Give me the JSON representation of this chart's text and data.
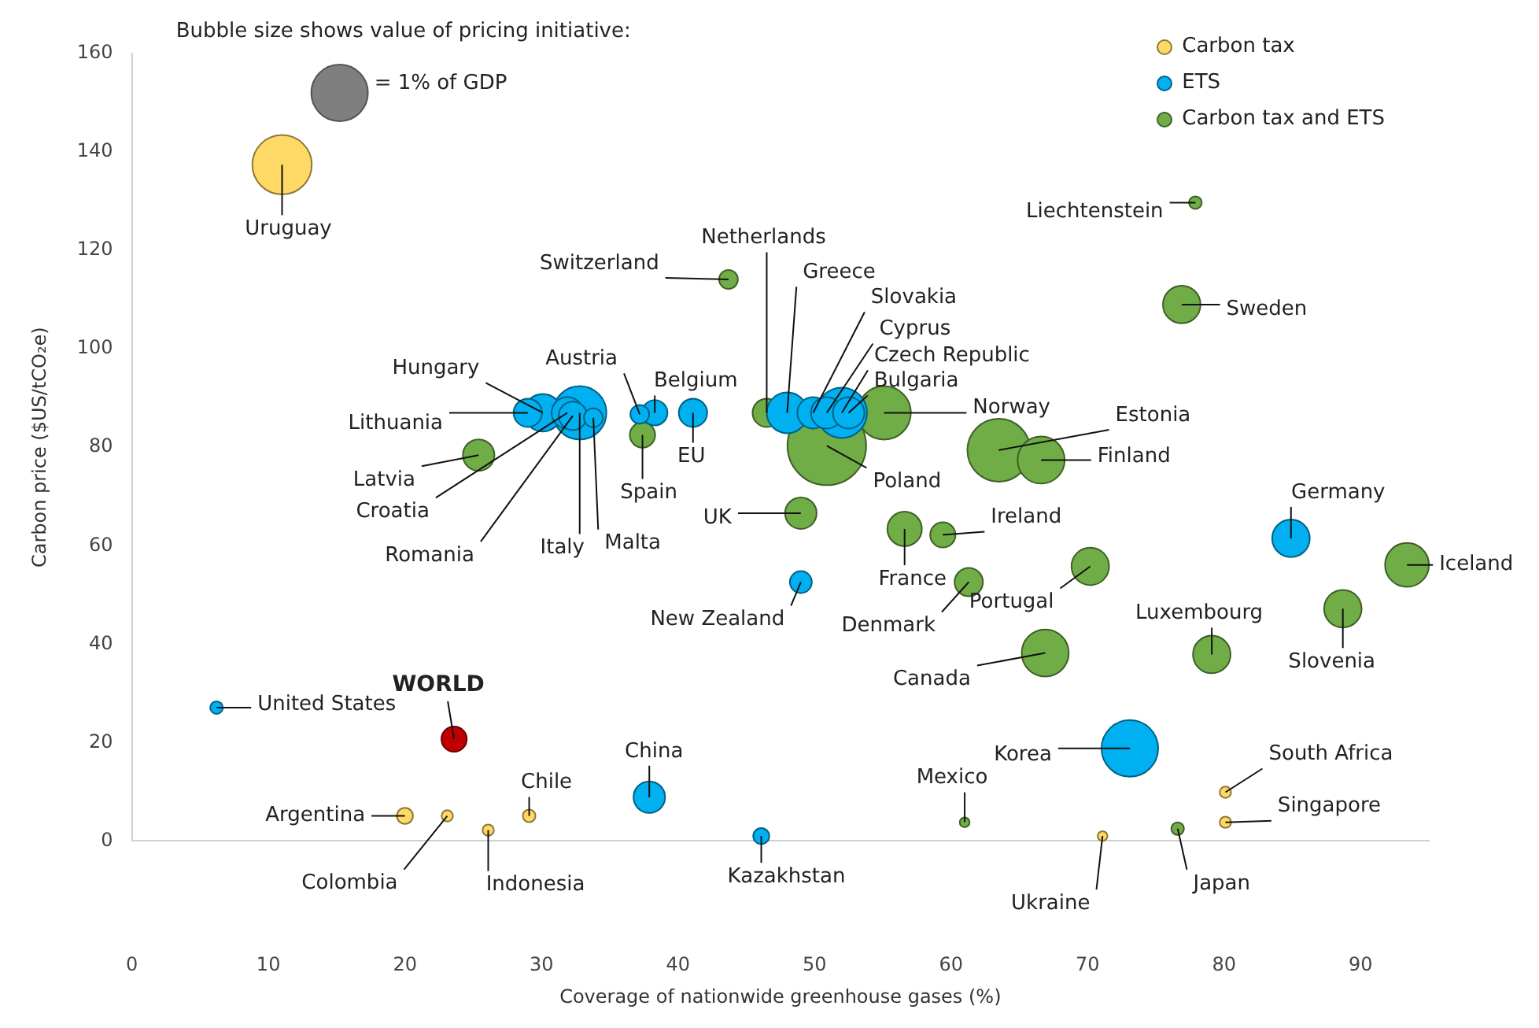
{
  "chart_data": {
    "type": "bubble",
    "xlabel": "Coverage of nationwide greenhouse gases (%)",
    "ylabel": "Carbon price ($US/tCO₂e)",
    "xlim": [
      0,
      95
    ],
    "xticks": [
      0,
      10,
      20,
      30,
      40,
      50,
      60,
      70,
      80,
      90
    ],
    "ylim": [
      0,
      160
    ],
    "yticks": [
      0,
      20,
      40,
      60,
      80,
      100,
      120,
      140,
      160
    ],
    "grid": false,
    "legend": "top right",
    "size_legend": [
      {
        "value": 1,
        "label": "= 1% of GDP"
      }
    ],
    "series": [
      {
        "name": "Carbon tax",
        "color": "#ffd966",
        "x": [
          11.0,
          20.0,
          23.1,
          26.1,
          29.1,
          71.1,
          80.1,
          80.1
        ],
        "values": [
          137.4,
          5.1,
          5.1,
          2.2,
          5.1,
          1.0,
          9.9,
          3.8
        ],
        "sizes": [
          1.1,
          0.08,
          0.04,
          0.04,
          0.05,
          0.03,
          0.04,
          0.04
        ]
      },
      {
        "name": "ETS",
        "color": "#00b0f0",
        "x": [
          6.2,
          37.9,
          46.1,
          49.0,
          84.9,
          73.1,
          41.1,
          38.3,
          37.2,
          32.8,
          30.1,
          29.0,
          31.9,
          32.3,
          33.8,
          52.0,
          48.0,
          49.9,
          50.9,
          52.5
        ],
        "values": [
          27.1,
          8.9,
          1.0,
          52.6,
          61.5,
          18.8,
          87.0,
          87.0,
          86.7,
          87.0,
          87.0,
          87.0,
          87.0,
          86.4,
          86.0,
          87.0,
          87.0,
          87.0,
          87.0,
          87.0
        ],
        "sizes": [
          0.05,
          0.31,
          0.08,
          0.15,
          0.44,
          1.0,
          0.25,
          0.2,
          0.11,
          0.89,
          0.44,
          0.25,
          0.31,
          0.25,
          0.11,
          0.79,
          0.52,
          0.31,
          0.31,
          0.31
        ]
      },
      {
        "name": "Carbon tax and ETS",
        "color": "#70ad47",
        "x": [
          25.4,
          37.4,
          43.7,
          46.5,
          55.1,
          50.9,
          77.9,
          76.9,
          63.5,
          66.6,
          49.0,
          56.6,
          59.4,
          61.3,
          70.2,
          66.9,
          79.1,
          88.7,
          93.4,
          61.0,
          76.6
        ],
        "values": [
          78.4,
          82.5,
          114.1,
          87.0,
          87.0,
          80.3,
          129.7,
          109.0,
          79.4,
          77.4,
          66.6,
          63.4,
          62.2,
          52.6,
          55.8,
          38.2,
          37.9,
          47.2,
          56.1,
          3.8,
          2.5
        ],
        "sizes": [
          0.31,
          0.2,
          0.11,
          0.25,
          0.89,
          1.93,
          0.05,
          0.44,
          1.23,
          0.69,
          0.31,
          0.37,
          0.2,
          0.25,
          0.44,
          0.69,
          0.44,
          0.44,
          0.6,
          0.03,
          0.05
        ]
      },
      {
        "name": "WORLD",
        "color": "#c00000",
        "x": [
          23.6
        ],
        "values": [
          20.7
        ],
        "sizes": [
          0.2
        ]
      }
    ],
    "annotations": [
      "Bubble size shows value of pricing initiative:",
      {
        "text": "Uruguay",
        "x": 11.0,
        "y": 137.4
      },
      {
        "text": "Argentina",
        "x": 20.0,
        "y": 5.1
      },
      {
        "text": "Colombia",
        "x": 23.1,
        "y": 5.1
      },
      {
        "text": "Indonesia",
        "x": 26.1,
        "y": 2.2
      },
      {
        "text": "Chile",
        "x": 29.1,
        "y": 5.1
      },
      {
        "text": "Ukraine",
        "x": 71.1,
        "y": 1.0
      },
      {
        "text": "South Africa",
        "x": 80.1,
        "y": 9.9
      },
      {
        "text": "Singapore",
        "x": 80.1,
        "y": 3.8
      },
      {
        "text": "United States",
        "x": 6.2,
        "y": 27.1
      },
      {
        "text": "China",
        "x": 37.9,
        "y": 8.9
      },
      {
        "text": "Kazakhstan",
        "x": 46.1,
        "y": 1.0
      },
      {
        "text": "New Zealand",
        "x": 49.0,
        "y": 52.6
      },
      {
        "text": "Germany",
        "x": 84.9,
        "y": 61.5
      },
      {
        "text": "Korea",
        "x": 73.1,
        "y": 18.8
      },
      {
        "text": "EU",
        "x": 41.1,
        "y": 87.0
      },
      {
        "text": "Belgium",
        "x": 38.3,
        "y": 87.0
      },
      {
        "text": "Austria",
        "x": 37.2,
        "y": 86.7
      },
      {
        "text": "Hungary",
        "x": 30.1,
        "y": 87.0
      },
      {
        "text": "Lithuania",
        "x": 29.0,
        "y": 87.0
      },
      {
        "text": "Croatia",
        "x": 31.9,
        "y": 87.0
      },
      {
        "text": "Romania",
        "x": 32.3,
        "y": 86.4
      },
      {
        "text": "Italy",
        "x": 32.8,
        "y": 87.0
      },
      {
        "text": "Malta",
        "x": 33.8,
        "y": 86.0
      },
      {
        "text": "Greece",
        "x": 48.0,
        "y": 87.0
      },
      {
        "text": "Slovakia",
        "x": 49.9,
        "y": 87.0
      },
      {
        "text": "Cyprus",
        "x": 50.9,
        "y": 87.0
      },
      {
        "text": "Czech Republic",
        "x": 52.0,
        "y": 87.0
      },
      {
        "text": "Bulgaria",
        "x": 52.5,
        "y": 87.0
      },
      {
        "text": "Latvia",
        "x": 25.4,
        "y": 78.4
      },
      {
        "text": "Spain",
        "x": 37.4,
        "y": 82.5
      },
      {
        "text": "Switzerland",
        "x": 43.7,
        "y": 114.1
      },
      {
        "text": "Netherlands",
        "x": 46.5,
        "y": 87.0
      },
      {
        "text": "Norway",
        "x": 55.1,
        "y": 87.0
      },
      {
        "text": "Poland",
        "x": 50.9,
        "y": 80.3
      },
      {
        "text": "Liechtenstein",
        "x": 77.9,
        "y": 129.7
      },
      {
        "text": "Sweden",
        "x": 76.9,
        "y": 109.0
      },
      {
        "text": "Estonia",
        "x": 63.5,
        "y": 79.4
      },
      {
        "text": "Finland",
        "x": 66.6,
        "y": 77.4
      },
      {
        "text": "UK",
        "x": 49.0,
        "y": 66.6
      },
      {
        "text": "France",
        "x": 56.6,
        "y": 63.4
      },
      {
        "text": "Ireland",
        "x": 59.4,
        "y": 62.2
      },
      {
        "text": "Denmark",
        "x": 61.3,
        "y": 52.6
      },
      {
        "text": "Portugal",
        "x": 70.2,
        "y": 55.8
      },
      {
        "text": "Canada",
        "x": 66.9,
        "y": 38.2
      },
      {
        "text": "Luxembourg",
        "x": 79.1,
        "y": 37.9
      },
      {
        "text": "Slovenia",
        "x": 88.7,
        "y": 47.2
      },
      {
        "text": "Iceland",
        "x": 93.4,
        "y": 56.1
      },
      {
        "text": "Mexico",
        "x": 61.0,
        "y": 3.8
      },
      {
        "text": "Japan",
        "x": 76.6,
        "y": 2.5
      }
    ]
  }
}
